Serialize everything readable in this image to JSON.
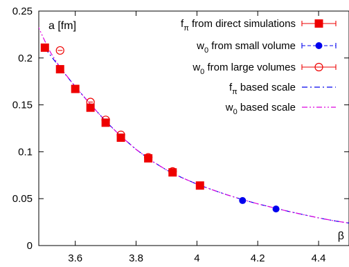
{
  "chart_data": {
    "type": "scatter",
    "ylabel": "a [fm]",
    "xlabel": "β",
    "xlim": [
      3.48,
      4.5
    ],
    "ylim": [
      0,
      0.25
    ],
    "x_ticks": [
      3.6,
      3.8,
      4,
      4.2,
      4.4
    ],
    "x_tick_labels": [
      "3.6",
      "3.8",
      "4",
      "4.2",
      "4.4"
    ],
    "y_ticks": [
      0,
      0.05,
      0.1,
      0.15,
      0.2,
      0.25
    ],
    "y_tick_labels": [
      "0",
      "0.05",
      "0.1",
      "0.15",
      "0.2",
      "0.25"
    ],
    "grid": false,
    "legend_position": "top-right",
    "series": [
      {
        "name": "f_π from direct simulations",
        "label_main": "f",
        "label_sub": "π",
        "label_rest": " from direct simulations",
        "kind": "points",
        "marker": "filled-square",
        "color": "#ee0000",
        "points": [
          [
            3.5,
            0.211
          ],
          [
            3.55,
            0.188
          ],
          [
            3.6,
            0.167
          ],
          [
            3.65,
            0.147
          ],
          [
            3.7,
            0.131
          ],
          [
            3.75,
            0.115
          ],
          [
            3.84,
            0.093
          ],
          [
            3.92,
            0.078
          ],
          [
            4.01,
            0.064
          ]
        ]
      },
      {
        "name": "w_0 from small volume",
        "label_main": "w",
        "label_sub": "0",
        "label_rest": " from small volume",
        "kind": "points",
        "marker": "filled-circle",
        "color": "#0000ee",
        "points": [
          [
            4.15,
            0.048
          ],
          [
            4.26,
            0.039
          ]
        ]
      },
      {
        "name": "w_0 from large volumes",
        "label_main": "w",
        "label_sub": "0",
        "label_rest": " from large volumes",
        "kind": "points",
        "marker": "open-circle",
        "color": "#ee0000",
        "points": [
          [
            3.55,
            0.208
          ],
          [
            3.65,
            0.153
          ],
          [
            3.7,
            0.134
          ],
          [
            3.75,
            0.118
          ],
          [
            3.84,
            0.094
          ],
          [
            3.92,
            0.079
          ]
        ]
      },
      {
        "name": "f_π based scale",
        "label_main": "f",
        "label_sub": "π",
        "label_rest": " based scale",
        "kind": "curve",
        "dash": "dash-dot",
        "color": "#0000ee",
        "points": [
          [
            3.5,
            0.2105
          ],
          [
            3.55,
            0.1895
          ],
          [
            3.6,
            0.1695
          ],
          [
            3.65,
            0.1505
          ],
          [
            3.7,
            0.1325
          ],
          [
            3.75,
            0.1165
          ],
          [
            3.8,
            0.1025
          ],
          [
            3.85,
            0.0905
          ],
          [
            3.9,
            0.0805
          ],
          [
            3.95,
            0.0725
          ],
          [
            4.0,
            0.0655
          ],
          [
            4.05,
            0.0595
          ],
          [
            4.1,
            0.054
          ],
          [
            4.15,
            0.049
          ],
          [
            4.2,
            0.0445
          ],
          [
            4.25,
            0.0405
          ],
          [
            4.3,
            0.0365
          ],
          [
            4.35,
            0.033
          ],
          [
            4.4,
            0.0295
          ],
          [
            4.45,
            0.0265
          ],
          [
            4.5,
            0.024
          ]
        ]
      },
      {
        "name": "w_0 based scale",
        "label_main": "w",
        "label_sub": "0",
        "label_rest": " based scale",
        "kind": "curve",
        "dash": "dash-dot-dot",
        "color": "#dd00dd",
        "points": [
          [
            3.455,
            0.25
          ],
          [
            3.48,
            0.232
          ],
          [
            3.5,
            0.218
          ],
          [
            3.52,
            0.205
          ],
          [
            3.55,
            0.19
          ],
          [
            3.6,
            0.1695
          ],
          [
            3.65,
            0.1505
          ],
          [
            3.7,
            0.1325
          ],
          [
            3.75,
            0.1165
          ],
          [
            3.8,
            0.1025
          ],
          [
            3.85,
            0.0905
          ],
          [
            3.9,
            0.0805
          ],
          [
            3.95,
            0.0725
          ],
          [
            4.0,
            0.0655
          ],
          [
            4.05,
            0.0595
          ],
          [
            4.1,
            0.054
          ],
          [
            4.15,
            0.049
          ],
          [
            4.2,
            0.0445
          ],
          [
            4.25,
            0.0405
          ],
          [
            4.3,
            0.0365
          ],
          [
            4.35,
            0.033
          ],
          [
            4.4,
            0.0295
          ],
          [
            4.45,
            0.0265
          ],
          [
            4.5,
            0.024
          ]
        ]
      }
    ]
  }
}
